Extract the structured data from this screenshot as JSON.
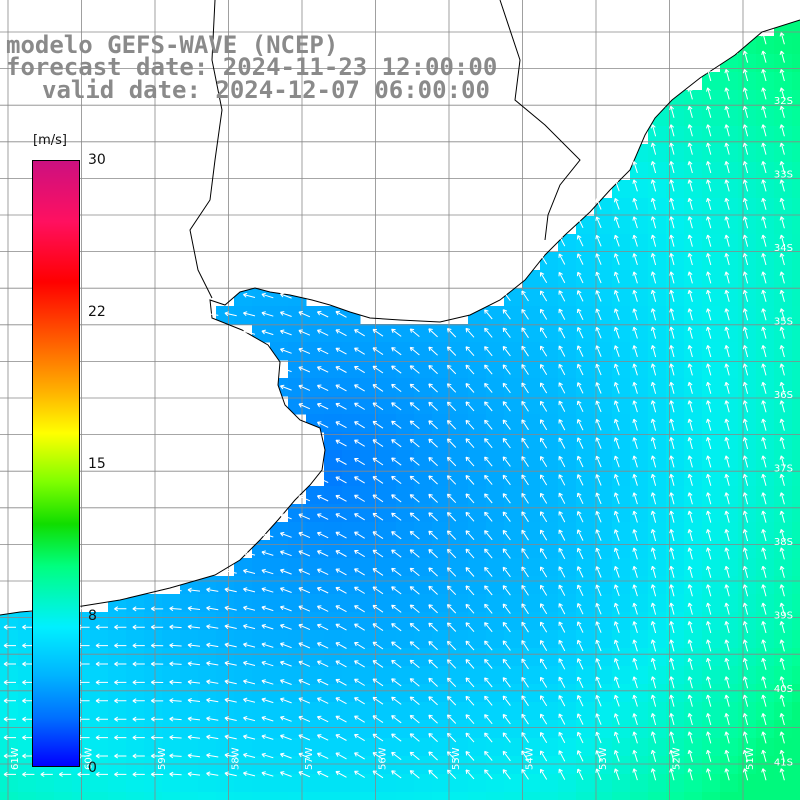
{
  "title": {
    "line1": "modelo GEFS-WAVE (NCEP)",
    "line2": "forecast date: 2024-11-23 12:00:00",
    "line3": "valid date: 2024-12-07 06:00:00"
  },
  "colorbar": {
    "unit": "[m/s]",
    "ticks": [
      "30",
      "22",
      "15",
      "8",
      "0"
    ],
    "tick_values": [
      30,
      22,
      15,
      8,
      0
    ],
    "min": 0,
    "max": 30
  },
  "lat_labels": [
    "32S",
    "33S",
    "34S",
    "35S",
    "36S",
    "37S",
    "38S",
    "39S",
    "40S",
    "41S"
  ],
  "lon_labels": [
    "61W",
    "60W",
    "59W",
    "58W",
    "57W",
    "56W",
    "55W",
    "54W",
    "53W",
    "52W",
    "51W"
  ],
  "colors": {
    "land": "#ffffff",
    "grid": "#888888",
    "coast": "#000000",
    "arrows": "#ffffff",
    "title": "#8a8a8a"
  },
  "field": {
    "variable": "wind speed",
    "wind_direction": "from east-southeast, arrows pointing west to northwest",
    "speed_range_ms": [
      1,
      9
    ]
  }
}
